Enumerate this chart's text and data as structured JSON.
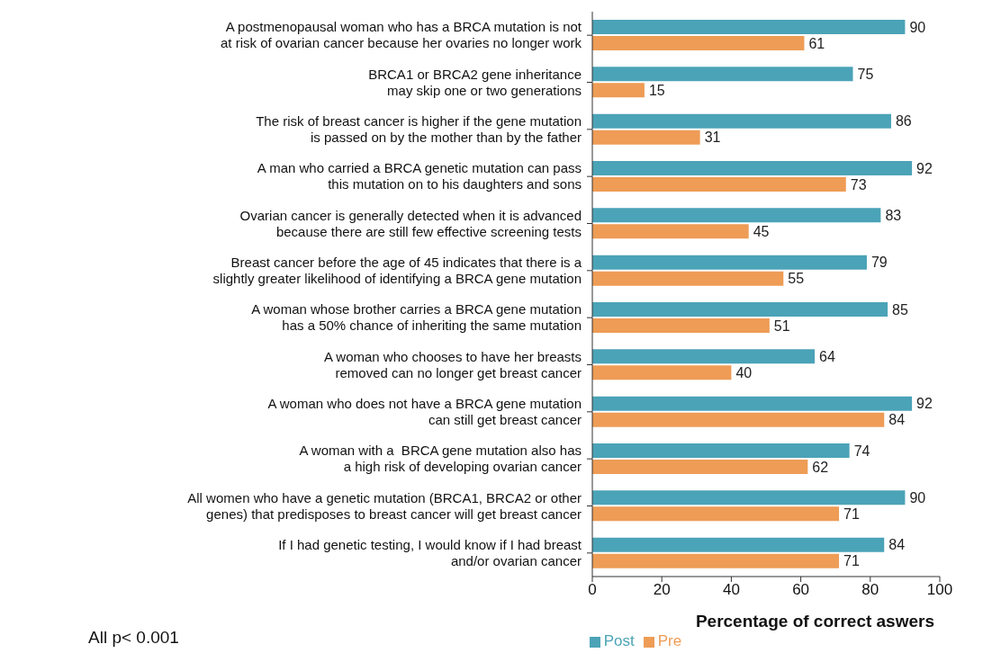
{
  "chart_data": {
    "type": "bar",
    "orientation": "horizontal",
    "xlabel": "Percentage of correct aswers",
    "categories": [
      "A postmenopausal woman who has a BRCA mutation is not\nat risk of ovarian cancer because her ovaries no longer work",
      "BRCA1 or BRCA2 gene inheritance\nmay skip one or two generations",
      "The risk of breast cancer is higher if the gene mutation\nis passed on by the mother than by the father",
      "A man who carried a BRCA genetic mutation can pass\nthis mutation on to his daughters and sons",
      "Ovarian cancer is generally detected when it is advanced\nbecause there are still few effective screening tests",
      "Breast cancer before the age of 45 indicates that there is a\nslightly greater likelihood of identifying a BRCA gene mutation",
      "A woman whose brother carries a BRCA gene mutation\nhas a 50% chance of inheriting the same mutation",
      "A woman who chooses to have her breasts\nremoved can no longer get breast cancer",
      "A woman who does not have a BRCA gene mutation\ncan still get breast cancer",
      "A woman with a  BRCA gene mutation also has\na high risk of developing ovarian cancer",
      "All women who have a genetic mutation (BRCA1, BRCA2 or other\ngenes) that predisposes to breast cancer will get breast cancer",
      "If I had genetic testing, I would know if I had breast\nand/or ovarian cancer"
    ],
    "series": [
      {
        "name": "Post",
        "color": "#4ba3b7",
        "values": [
          90,
          75,
          86,
          92,
          83,
          79,
          85,
          64,
          92,
          74,
          90,
          84
        ]
      },
      {
        "name": "Pre",
        "color": "#ee9c56",
        "values": [
          61,
          15,
          31,
          73,
          45,
          55,
          51,
          40,
          84,
          62,
          71,
          71
        ]
      }
    ],
    "xlim": [
      0,
      100
    ],
    "xticks": [
      0,
      20,
      40,
      60,
      80,
      100
    ],
    "grid": false,
    "legend": "bottom",
    "data_labels": true,
    "annotations": [
      "All p< 0.001"
    ]
  }
}
